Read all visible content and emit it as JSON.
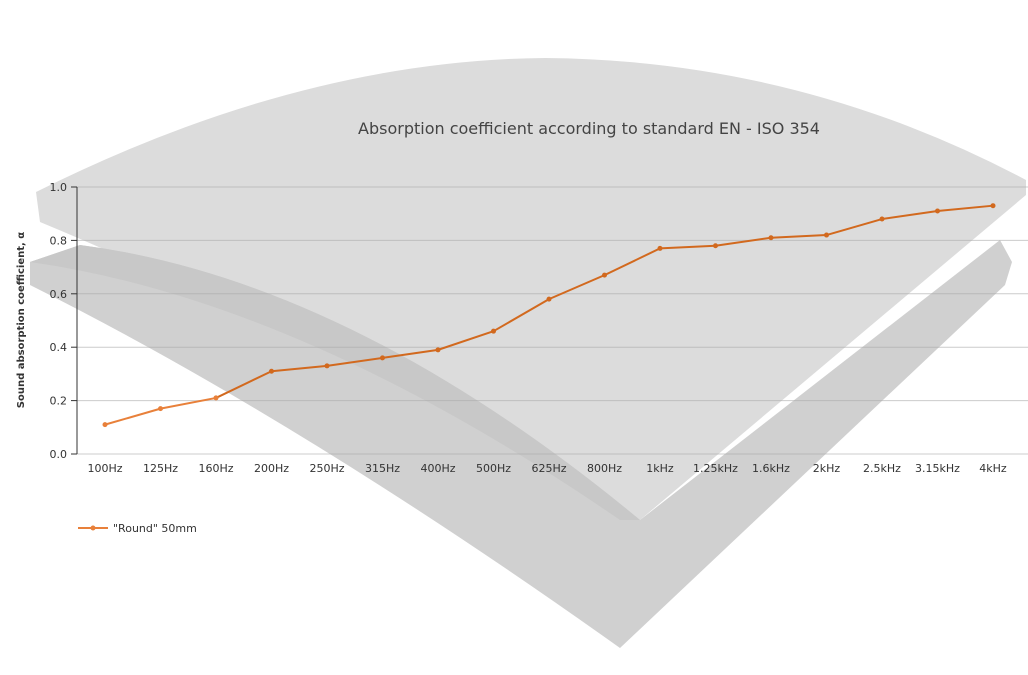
{
  "chart_data": {
    "type": "line",
    "title": "Absorption coefficient according to standard EN - ISO 354",
    "xlabel": "",
    "ylabel": "Sound absorption coefficient, α",
    "categories": [
      "100Hz",
      "125Hz",
      "160Hz",
      "200Hz",
      "250Hz",
      "315Hz",
      "400Hz",
      "500Hz",
      "625Hz",
      "800Hz",
      "1kHz",
      "1.25kHz",
      "1.6kHz",
      "2kHz",
      "2.5kHz",
      "3.15kHz",
      "4kHz"
    ],
    "series": [
      {
        "name": "\"Round\" 50mm",
        "values": [
          0.11,
          0.17,
          0.21,
          0.31,
          0.33,
          0.36,
          0.39,
          0.46,
          0.58,
          0.67,
          0.77,
          0.78,
          0.81,
          0.82,
          0.88,
          0.91,
          0.93
        ]
      }
    ],
    "ylim": [
      0,
      1.0
    ],
    "yticks": [
      "0.0",
      "0.2",
      "0.4",
      "0.6",
      "0.8",
      "1.0"
    ],
    "grid": true,
    "legend_position": "bottom-left",
    "colors": {
      "series": "#d2691e",
      "background_foam": "#d4d4d4"
    }
  }
}
